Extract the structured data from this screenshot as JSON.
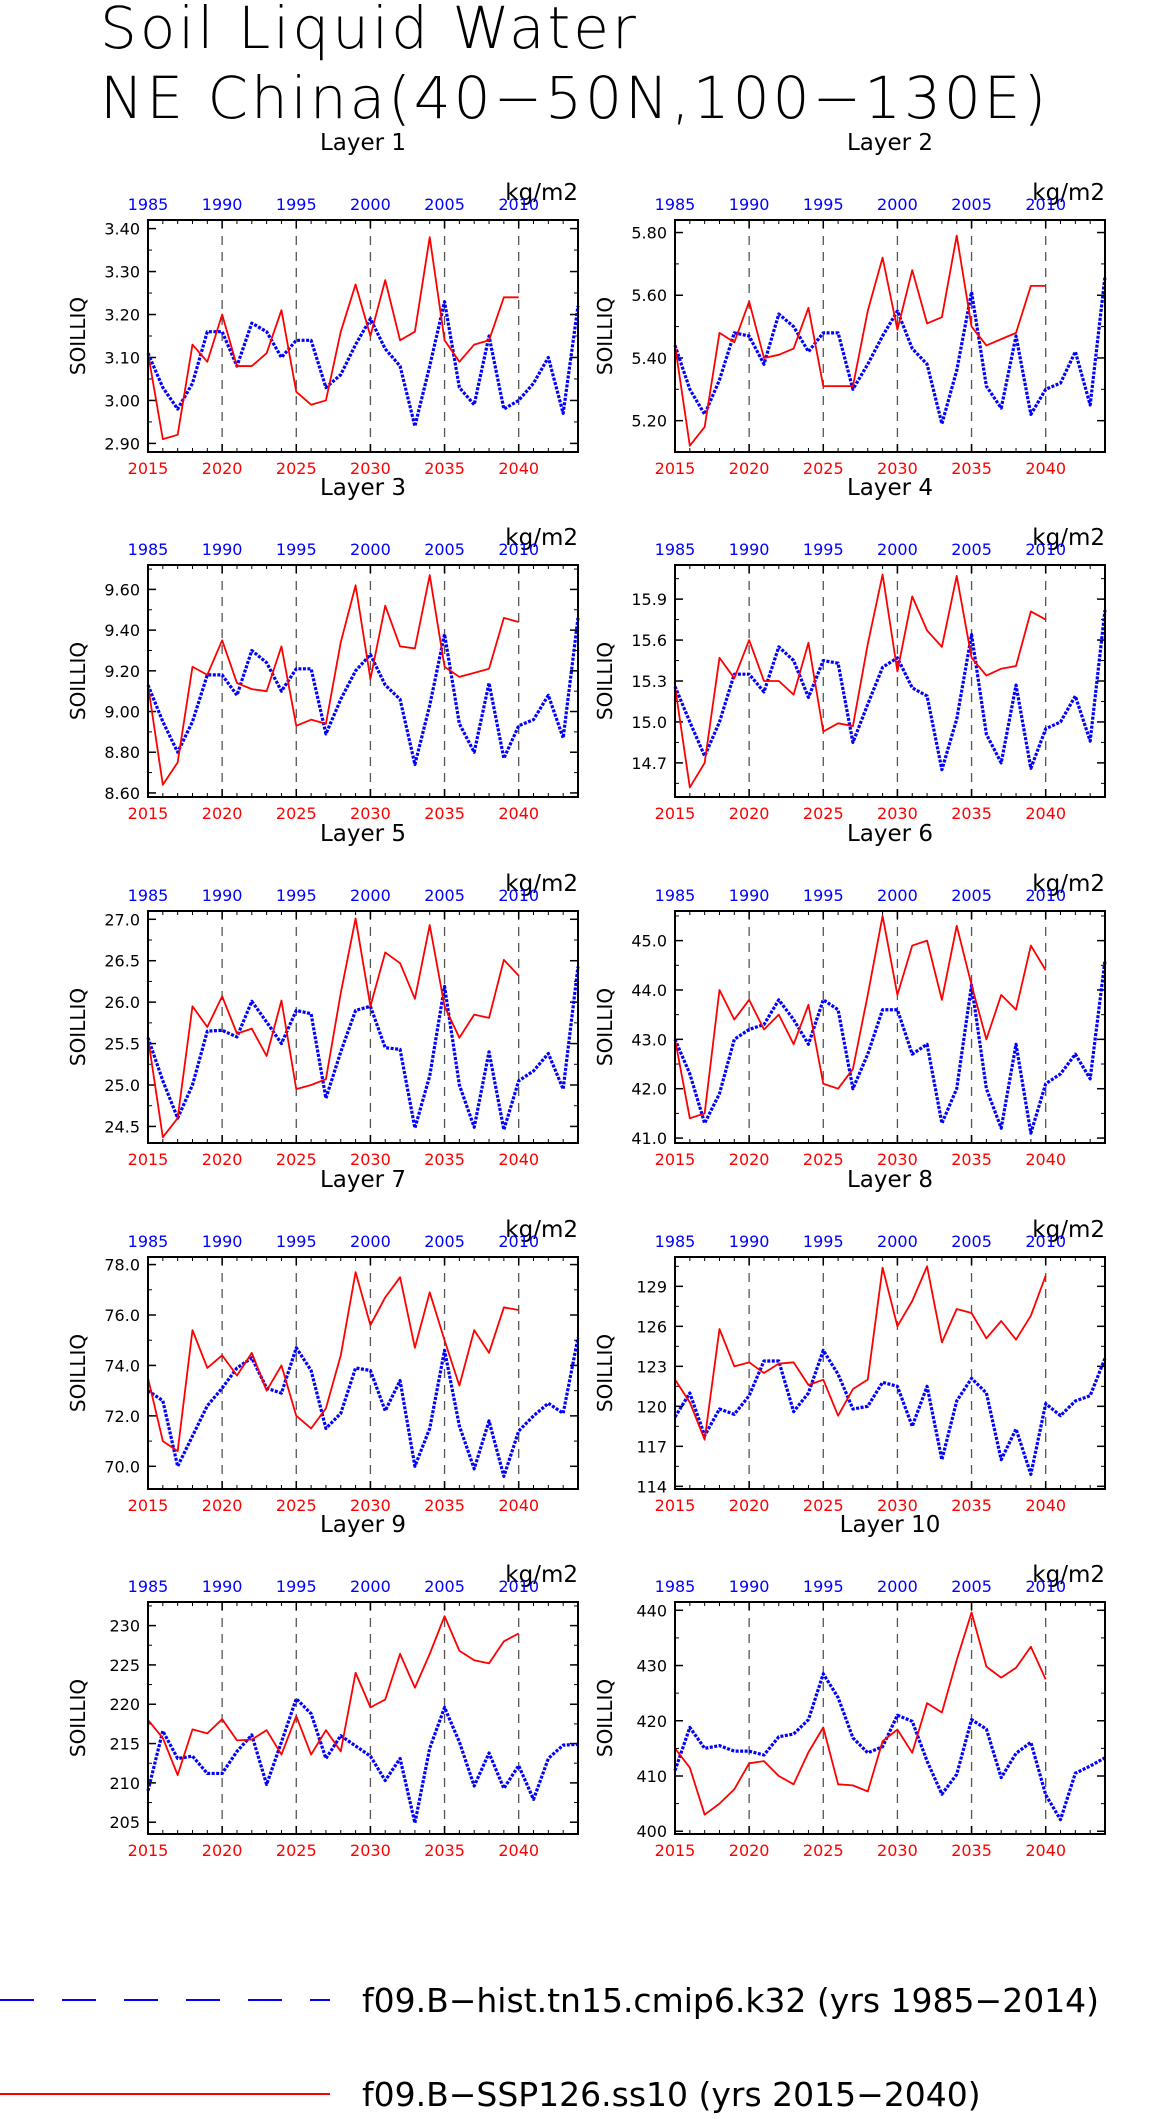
{
  "figure": {
    "title_lines": [
      "Soil Liquid Water",
      "NE China(40−50N,100−130E)"
    ],
    "units": "kg/m2",
    "ylabel": "SOILLIQ",
    "bottom_ticks": [
      "2015",
      "2020",
      "2025",
      "2030",
      "2035",
      "2040"
    ],
    "top_ticks": [
      "1985",
      "1990",
      "1995",
      "2000",
      "2005",
      "2010"
    ],
    "colors": {
      "hist": "#0000ff",
      "ssp": "#ff0000",
      "axis": "#000000"
    }
  },
  "legend": {
    "hist_label": "f09.B−hist.tn15.cmip6.k32 (yrs 1985−2014)",
    "ssp_label": "f09.B−SSP126.ss10 (yrs 2015−2040)"
  },
  "chart_data": [
    {
      "type": "line",
      "title": "Layer 1",
      "ylabel": "SOILLIQ",
      "units": "kg/m2",
      "ylim": [
        2.88,
        3.42
      ],
      "yticks": [
        2.9,
        3.0,
        3.1,
        3.2,
        3.3,
        3.4
      ],
      "ytick_labels": [
        "2.90",
        "3.00",
        "3.10",
        "3.20",
        "3.30",
        "3.40"
      ],
      "series": [
        {
          "name": "f09.B−hist.tn15.cmip6.k32 (yrs 1985−2014)",
          "x_range": [
            1985,
            2014
          ],
          "values": [
            3.11,
            3.03,
            2.98,
            3.04,
            3.16,
            3.16,
            3.08,
            3.18,
            3.16,
            3.1,
            3.14,
            3.14,
            3.03,
            3.06,
            3.13,
            3.19,
            3.12,
            3.08,
            2.94,
            3.08,
            3.23,
            3.03,
            2.99,
            3.15,
            2.98,
            3.0,
            3.04,
            3.1,
            2.97,
            3.22
          ]
        },
        {
          "name": "f09.B−SSP126.ss10 (yrs 2015−2040)",
          "x_range": [
            2015,
            2040
          ],
          "values": [
            3.11,
            2.91,
            2.92,
            3.13,
            3.09,
            3.2,
            3.08,
            3.08,
            3.11,
            3.21,
            3.02,
            2.99,
            3.0,
            3.16,
            3.27,
            3.15,
            3.28,
            3.14,
            3.16,
            3.38,
            3.14,
            3.09,
            3.13,
            3.14,
            3.24,
            3.24
          ]
        }
      ]
    },
    {
      "type": "line",
      "title": "Layer 2",
      "ylabel": "SOILLIQ",
      "units": "kg/m2",
      "ylim": [
        5.1,
        5.84
      ],
      "yticks": [
        5.2,
        5.4,
        5.6,
        5.8
      ],
      "ytick_labels": [
        "5.20",
        "5.40",
        "5.60",
        "5.80"
      ],
      "series": [
        {
          "name": "f09.B−hist.tn15.cmip6.k32 (yrs 1985−2014)",
          "x_range": [
            1985,
            2014
          ],
          "values": [
            5.44,
            5.3,
            5.22,
            5.33,
            5.48,
            5.47,
            5.38,
            5.54,
            5.5,
            5.42,
            5.48,
            5.48,
            5.3,
            5.38,
            5.47,
            5.55,
            5.43,
            5.38,
            5.19,
            5.36,
            5.61,
            5.31,
            5.24,
            5.47,
            5.22,
            5.3,
            5.32,
            5.42,
            5.25,
            5.66
          ]
        },
        {
          "name": "f09.B−SSP126.ss10 (yrs 2015−2040)",
          "x_range": [
            2015,
            2040
          ],
          "values": [
            5.44,
            5.12,
            5.18,
            5.48,
            5.45,
            5.58,
            5.4,
            5.41,
            5.43,
            5.56,
            5.31,
            5.31,
            5.31,
            5.55,
            5.72,
            5.49,
            5.68,
            5.51,
            5.53,
            5.79,
            5.5,
            5.44,
            5.46,
            5.48,
            5.63,
            5.63
          ]
        }
      ]
    },
    {
      "type": "line",
      "title": "Layer 3",
      "ylabel": "SOILLIQ",
      "units": "kg/m2",
      "ylim": [
        8.58,
        9.72
      ],
      "yticks": [
        8.6,
        8.8,
        9.0,
        9.2,
        9.4,
        9.6
      ],
      "ytick_labels": [
        "8.60",
        "8.80",
        "9.00",
        "9.20",
        "9.40",
        "9.60"
      ],
      "series": [
        {
          "name": "f09.B−hist.tn15.cmip6.k32 (yrs 1985−2014)",
          "x_range": [
            1985,
            2014
          ],
          "values": [
            9.13,
            8.95,
            8.8,
            8.95,
            9.18,
            9.18,
            9.08,
            9.3,
            9.24,
            9.1,
            9.21,
            9.21,
            8.89,
            9.06,
            9.2,
            9.28,
            9.13,
            9.06,
            8.74,
            9.03,
            9.38,
            8.94,
            8.8,
            9.14,
            8.77,
            8.93,
            8.96,
            9.08,
            8.87,
            9.46
          ]
        },
        {
          "name": "f09.B−SSP126.ss10 (yrs 2015−2040)",
          "x_range": [
            2015,
            2040
          ],
          "values": [
            9.13,
            8.64,
            8.75,
            9.22,
            9.18,
            9.35,
            9.14,
            9.11,
            9.1,
            9.32,
            8.93,
            8.96,
            8.94,
            9.34,
            9.62,
            9.16,
            9.52,
            9.32,
            9.31,
            9.67,
            9.22,
            9.17,
            9.19,
            9.21,
            9.46,
            9.44
          ]
        }
      ]
    },
    {
      "type": "line",
      "title": "Layer 4",
      "ylabel": "SOILLIQ",
      "units": "kg/m2",
      "ylim": [
        14.45,
        16.15
      ],
      "yticks": [
        14.7,
        15.0,
        15.3,
        15.6,
        15.9
      ],
      "ytick_labels": [
        "14.7",
        "15.0",
        "15.3",
        "15.6",
        "15.9"
      ],
      "series": [
        {
          "name": "f09.B−hist.tn15.cmip6.k32 (yrs 1985−2014)",
          "x_range": [
            1985,
            2014
          ],
          "values": [
            15.26,
            15.0,
            14.75,
            15.0,
            15.35,
            15.35,
            15.22,
            15.55,
            15.45,
            15.18,
            15.45,
            15.43,
            14.85,
            15.13,
            15.4,
            15.47,
            15.25,
            15.19,
            14.65,
            15.02,
            15.64,
            14.91,
            14.7,
            15.27,
            14.66,
            14.95,
            15.0,
            15.19,
            14.86,
            15.82
          ]
        },
        {
          "name": "f09.B−SSP126.ss10 (yrs 2015−2040)",
          "x_range": [
            2015,
            2040
          ],
          "values": [
            15.26,
            14.52,
            14.7,
            15.47,
            15.32,
            15.6,
            15.3,
            15.3,
            15.2,
            15.58,
            14.93,
            14.99,
            14.97,
            15.57,
            16.08,
            15.37,
            15.92,
            15.67,
            15.55,
            16.07,
            15.47,
            15.34,
            15.39,
            15.41,
            15.81,
            15.75
          ]
        }
      ]
    },
    {
      "type": "line",
      "title": "Layer 5",
      "ylabel": "SOILLIQ",
      "units": "kg/m2",
      "ylim": [
        24.3,
        27.1
      ],
      "yticks": [
        24.5,
        25.0,
        25.5,
        26.0,
        26.5,
        27.0
      ],
      "ytick_labels": [
        "24.5",
        "25.0",
        "25.5",
        "26.0",
        "26.5",
        "27.0"
      ],
      "series": [
        {
          "name": "f09.B−hist.tn15.cmip6.k32 (yrs 1985−2014)",
          "x_range": [
            1985,
            2014
          ],
          "values": [
            25.57,
            25.05,
            24.6,
            25.0,
            25.65,
            25.66,
            25.58,
            26.01,
            25.76,
            25.5,
            25.9,
            25.86,
            24.84,
            25.4,
            25.9,
            25.95,
            25.45,
            25.43,
            24.48,
            25.11,
            26.19,
            25.0,
            24.49,
            25.4,
            24.46,
            25.05,
            25.17,
            25.38,
            24.95,
            26.43
          ]
        },
        {
          "name": "f09.B−SSP126.ss10 (yrs 2015−2040)",
          "x_range": [
            2015,
            2040
          ],
          "values": [
            25.57,
            24.37,
            24.6,
            25.95,
            25.7,
            26.07,
            25.62,
            25.68,
            25.35,
            26.02,
            24.95,
            25.0,
            25.07,
            26.11,
            27.01,
            25.95,
            26.6,
            26.47,
            26.04,
            26.93,
            25.95,
            25.57,
            25.85,
            25.81,
            26.51,
            26.32
          ]
        }
      ]
    },
    {
      "type": "line",
      "title": "Layer 6",
      "ylabel": "SOILLIQ",
      "units": "kg/m2",
      "ylim": [
        40.9,
        45.6
      ],
      "yticks": [
        41.0,
        42.0,
        43.0,
        44.0,
        45.0
      ],
      "ytick_labels": [
        "41.0",
        "42.0",
        "43.0",
        "44.0",
        "45.0"
      ],
      "series": [
        {
          "name": "f09.B−hist.tn15.cmip6.k32 (yrs 1985−2014)",
          "x_range": [
            1985,
            2014
          ],
          "values": [
            43.0,
            42.3,
            41.3,
            41.9,
            43.0,
            43.2,
            43.3,
            43.8,
            43.4,
            42.9,
            43.8,
            43.6,
            42.0,
            42.7,
            43.6,
            43.6,
            42.7,
            42.9,
            41.3,
            42.0,
            44.1,
            42.0,
            41.2,
            42.9,
            41.1,
            42.1,
            42.3,
            42.7,
            42.2,
            44.6
          ]
        },
        {
          "name": "f09.B−SSP126.ss10 (yrs 2015−2040)",
          "x_range": [
            2015,
            2040
          ],
          "values": [
            43.0,
            41.4,
            41.5,
            44.0,
            43.4,
            43.8,
            43.2,
            43.5,
            42.9,
            43.7,
            42.1,
            42.0,
            42.4,
            43.9,
            45.5,
            43.9,
            44.9,
            45.0,
            43.8,
            45.3,
            44.1,
            43.0,
            43.9,
            43.6,
            44.9,
            44.4
          ]
        }
      ]
    },
    {
      "type": "line",
      "title": "Layer 7",
      "ylabel": "SOILLIQ",
      "units": "kg/m2",
      "ylim": [
        69.1,
        78.3
      ],
      "yticks": [
        70.0,
        72.0,
        74.0,
        76.0,
        78.0
      ],
      "ytick_labels": [
        "70.0",
        "72.0",
        "74.0",
        "76.0",
        "78.0"
      ],
      "series": [
        {
          "name": "f09.B−hist.tn15.cmip6.k32 (yrs 1985−2014)",
          "x_range": [
            1985,
            2014
          ],
          "values": [
            73.0,
            72.6,
            70.0,
            71.2,
            72.4,
            73.1,
            73.9,
            74.3,
            73.1,
            72.9,
            74.7,
            73.8,
            71.5,
            72.1,
            73.9,
            73.8,
            72.2,
            73.4,
            70.0,
            71.5,
            74.6,
            71.6,
            69.9,
            71.8,
            69.6,
            71.4,
            72.0,
            72.5,
            72.1,
            75.1
          ]
        },
        {
          "name": "f09.B−SSP126.ss10 (yrs 2015−2040)",
          "x_range": [
            2015,
            2040
          ],
          "values": [
            73.5,
            71.0,
            70.6,
            75.4,
            73.9,
            74.4,
            73.6,
            74.5,
            73.0,
            74.0,
            72.0,
            71.5,
            72.3,
            74.4,
            77.7,
            75.6,
            76.7,
            77.5,
            74.7,
            76.9,
            75.0,
            73.2,
            75.4,
            74.5,
            76.3,
            76.2
          ]
        }
      ]
    },
    {
      "type": "line",
      "title": "Layer 8",
      "ylabel": "SOILLIQ",
      "units": "kg/m2",
      "ylim": [
        113.8,
        131.2
      ],
      "yticks": [
        114,
        117,
        120,
        123,
        126,
        129
      ],
      "ytick_labels": [
        "114",
        "117",
        "120",
        "123",
        "126",
        "129"
      ],
      "series": [
        {
          "name": "f09.B−hist.tn15.cmip6.k32 (yrs 1985−2014)",
          "x_range": [
            1985,
            2014
          ],
          "values": [
            119.2,
            121.0,
            117.8,
            119.8,
            119.4,
            120.8,
            123.4,
            123.4,
            119.6,
            121.0,
            124.2,
            122.4,
            119.8,
            120.0,
            121.8,
            121.5,
            118.5,
            121.5,
            116.0,
            120.4,
            122.1,
            121.0,
            116.0,
            118.3,
            114.9,
            120.2,
            119.3,
            120.4,
            120.8,
            123.6
          ]
        },
        {
          "name": "f09.B−SSP126.ss10 (yrs 2015−2040)",
          "x_range": [
            2015,
            2040
          ],
          "values": [
            122.0,
            120.3,
            117.5,
            125.8,
            123.0,
            123.3,
            122.5,
            123.2,
            123.3,
            121.6,
            122.0,
            119.3,
            121.3,
            122.0,
            130.4,
            126.0,
            127.9,
            130.5,
            124.8,
            127.3,
            127.0,
            125.1,
            126.4,
            125.0,
            126.8,
            129.8
          ]
        }
      ]
    },
    {
      "type": "line",
      "title": "Layer 9",
      "ylabel": "SOILLIQ",
      "units": "kg/m2",
      "ylim": [
        203.5,
        233.0
      ],
      "yticks": [
        205,
        210,
        215,
        220,
        225,
        230
      ],
      "ytick_labels": [
        "205",
        "210",
        "215",
        "220",
        "225",
        "230"
      ],
      "series": [
        {
          "name": "f09.B−hist.tn15.cmip6.k32 (yrs 1985−2014)",
          "x_range": [
            1985,
            2014
          ],
          "values": [
            209.0,
            216.6,
            213.1,
            213.4,
            211.2,
            211.2,
            214.0,
            216.1,
            209.8,
            215.2,
            220.7,
            218.8,
            213.1,
            216.0,
            214.7,
            213.4,
            210.3,
            213.1,
            204.9,
            214.4,
            219.6,
            215.2,
            209.6,
            213.8,
            209.3,
            212.2,
            207.9,
            213.1,
            214.8,
            214.9
          ]
        },
        {
          "name": "f09.B−SSP126.ss10 (yrs 2015−2040)",
          "x_range": [
            2015,
            2040
          ],
          "values": [
            218.0,
            215.7,
            211.0,
            216.8,
            216.3,
            218.1,
            215.4,
            215.5,
            216.7,
            213.6,
            218.5,
            213.6,
            216.7,
            214.0,
            224.0,
            219.6,
            220.6,
            226.4,
            222.1,
            226.4,
            231.2,
            226.8,
            225.6,
            225.2,
            228.0,
            229.0
          ]
        }
      ]
    },
    {
      "type": "line",
      "title": "Layer 10",
      "ylabel": "SOILLIQ",
      "units": "kg/m2",
      "ylim": [
        399.5,
        441.5
      ],
      "yticks": [
        400,
        410,
        420,
        430,
        440
      ],
      "ytick_labels": [
        "400",
        "410",
        "420",
        "430",
        "440"
      ],
      "series": [
        {
          "name": "f09.B−hist.tn15.cmip6.k32 (yrs 1985−2014)",
          "x_range": [
            1985,
            2014
          ],
          "values": [
            411.0,
            418.8,
            415.0,
            415.5,
            414.5,
            414.5,
            413.8,
            417.1,
            417.6,
            420.2,
            428.5,
            424.2,
            416.9,
            414.2,
            415.3,
            421.0,
            419.9,
            412.7,
            406.7,
            410.3,
            420.2,
            418.5,
            409.7,
            414.1,
            416.1,
            406.6,
            402.1,
            410.5,
            411.8,
            413.3
          ]
        },
        {
          "name": "f09.B−SSP126.ss10 (yrs 2015−2040)",
          "x_range": [
            2015,
            2040
          ],
          "values": [
            415.0,
            411.5,
            403.0,
            405.0,
            407.6,
            412.3,
            412.7,
            410.0,
            408.5,
            414.3,
            418.8,
            408.5,
            408.3,
            407.2,
            416.3,
            418.4,
            414.2,
            423.2,
            421.5,
            431.0,
            439.6,
            429.8,
            427.8,
            429.6,
            433.4,
            427.5
          ]
        }
      ]
    }
  ]
}
